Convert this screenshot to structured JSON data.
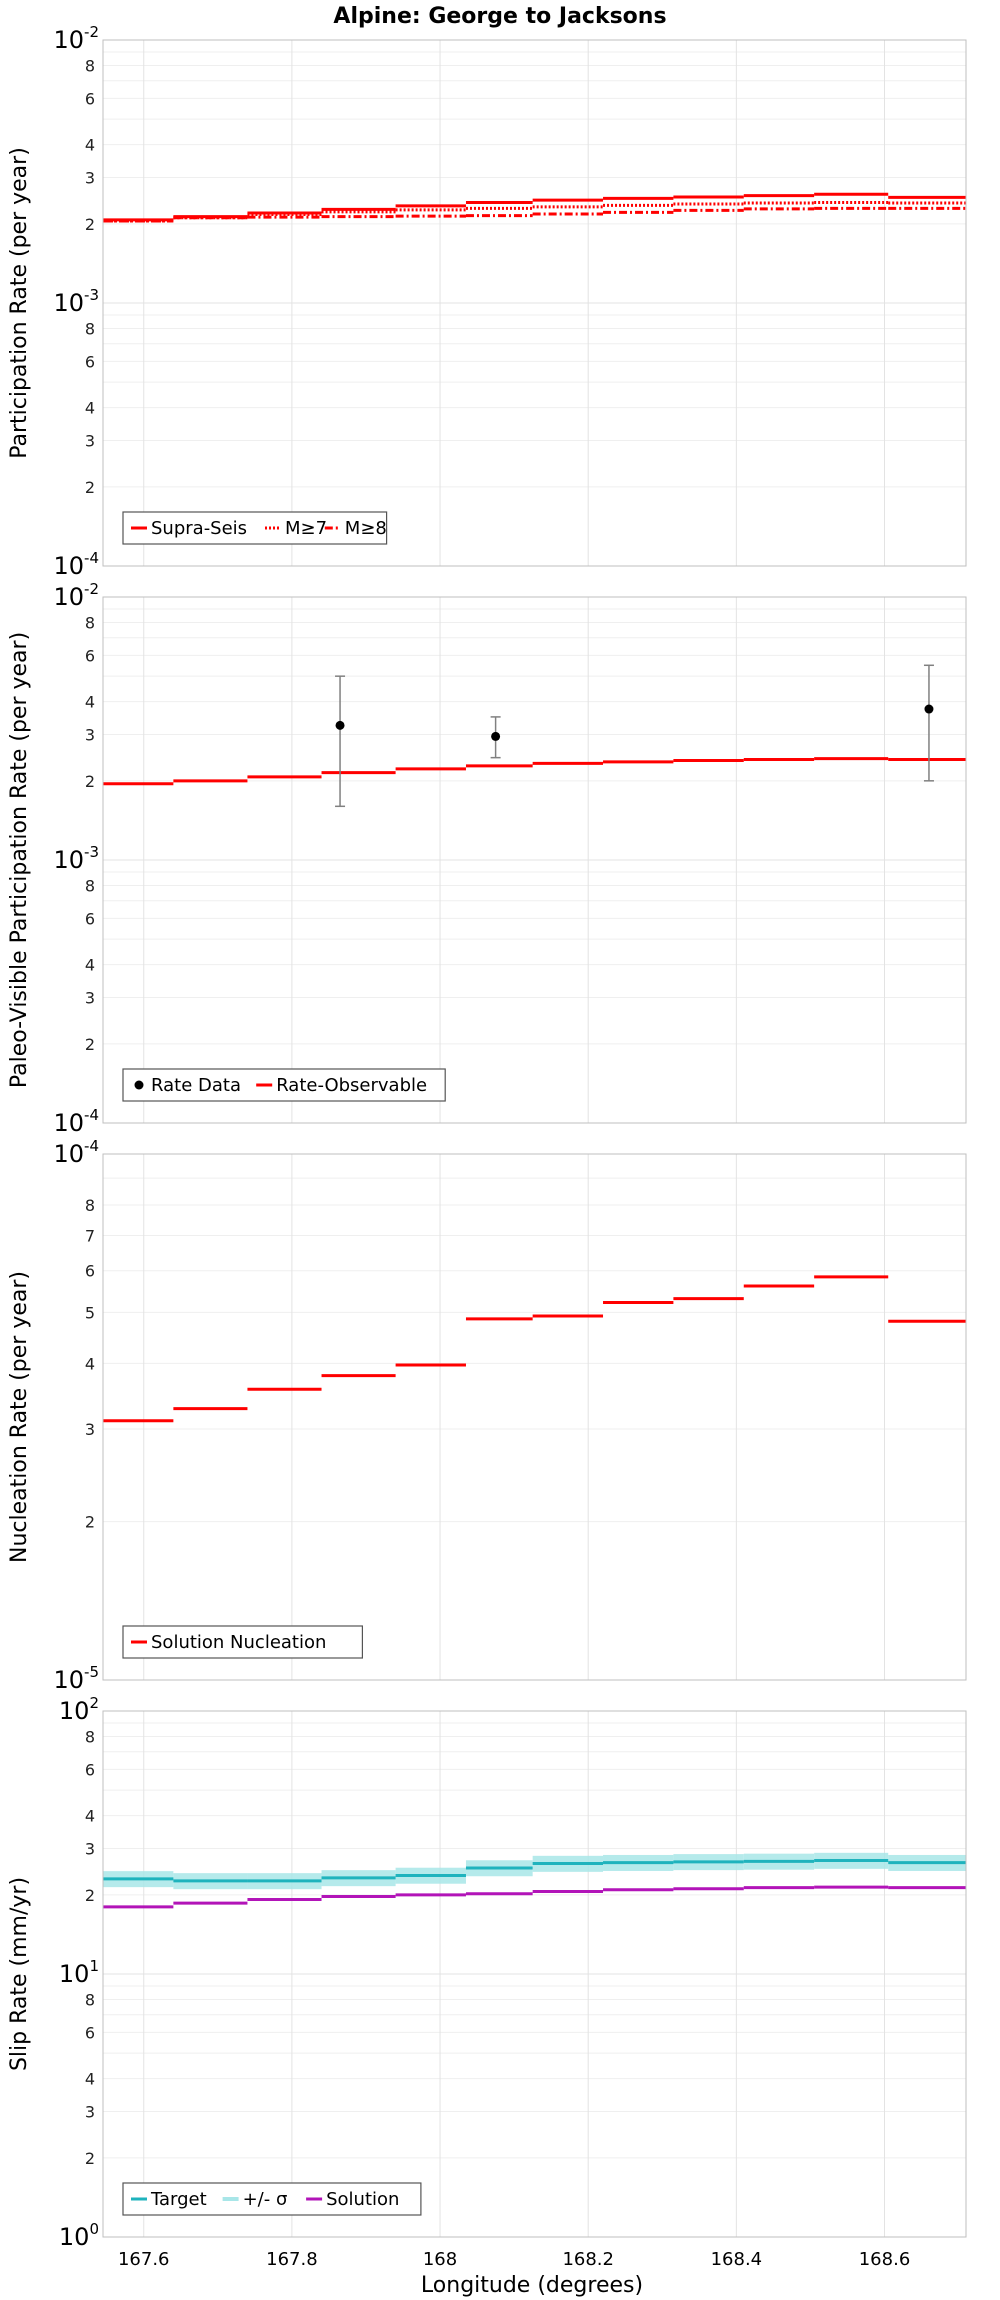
{
  "chart_data": {
    "type": "line",
    "title": "Alpine: George to Jacksons",
    "xlabel": "Longitude (degrees)",
    "xlim": [
      167.545,
      168.71
    ],
    "xticks": [
      "167.6",
      "167.8",
      "168",
      "168.2",
      "168.4",
      "168.6"
    ],
    "xtick_values": [
      167.6,
      167.8,
      168.0,
      168.2,
      168.4,
      168.6
    ],
    "sections": [
      {
        "start": 167.545,
        "end": 167.64
      },
      {
        "start": 167.64,
        "end": 167.74
      },
      {
        "start": 167.74,
        "end": 167.84
      },
      {
        "start": 167.84,
        "end": 167.94
      },
      {
        "start": 167.94,
        "end": 168.035
      },
      {
        "start": 168.035,
        "end": 168.125
      },
      {
        "start": 168.125,
        "end": 168.22
      },
      {
        "start": 168.22,
        "end": 168.315
      },
      {
        "start": 168.315,
        "end": 168.41
      },
      {
        "start": 168.41,
        "end": 168.505
      },
      {
        "start": 168.505,
        "end": 168.605
      },
      {
        "start": 168.605,
        "end": 168.71
      }
    ],
    "panels": [
      {
        "id": "participation",
        "ylabel": "Participation Rate (per year)",
        "ylim": [
          0.0001,
          0.01
        ],
        "y_major": [
          {
            "base": "10",
            "exp": "-4"
          },
          {
            "base": "10",
            "exp": "-3"
          },
          {
            "base": "10",
            "exp": "-2"
          }
        ],
        "minor_labels": [
          "2",
          "3",
          "4",
          "6",
          "8"
        ],
        "series": [
          {
            "name": "Supra-Seis",
            "style": "solid",
            "color": "#ff0000",
            "values": [
              0.00207,
              0.00213,
              0.0022,
              0.00227,
              0.00234,
              0.00241,
              0.00246,
              0.0025,
              0.00253,
              0.00256,
              0.00259,
              0.00252
            ]
          },
          {
            "name": "M≥7",
            "style": "dotted",
            "color": "#ff0000",
            "values": [
              0.00205,
              0.00211,
              0.00217,
              0.00222,
              0.00226,
              0.00229,
              0.00232,
              0.00235,
              0.00238,
              0.0024,
              0.00241,
              0.0024
            ]
          },
          {
            "name": "M≥8",
            "style": "dashdot",
            "color": "#ff0000",
            "values": [
              0.00205,
              0.00211,
              0.00212,
              0.00213,
              0.00214,
              0.00215,
              0.00218,
              0.00221,
              0.00225,
              0.00228,
              0.00229,
              0.00229
            ]
          }
        ],
        "legend": [
          "Supra-Seis",
          "M≥7",
          "M≥8"
        ]
      },
      {
        "id": "paleo",
        "ylabel": "Paleo-Visible Participation Rate (per year)",
        "ylim": [
          0.0001,
          0.01
        ],
        "y_major": [
          {
            "base": "10",
            "exp": "-4"
          },
          {
            "base": "10",
            "exp": "-3"
          },
          {
            "base": "10",
            "exp": "-2"
          }
        ],
        "minor_labels": [
          "2",
          "3",
          "4",
          "6",
          "8"
        ],
        "series": [
          {
            "name": "Rate-Observable",
            "style": "solid",
            "color": "#ff0000",
            "values": [
              0.00195,
              0.002,
              0.00207,
              0.00215,
              0.00222,
              0.00228,
              0.00233,
              0.00236,
              0.00239,
              0.00241,
              0.00243,
              0.00241
            ]
          }
        ],
        "points": {
          "name": "Rate Data",
          "x": [
            167.865,
            168.075,
            168.66
          ],
          "y": [
            0.00325,
            0.00295,
            0.00375
          ],
          "lower": [
            0.0016,
            0.00245,
            0.002
          ],
          "upper": [
            0.005,
            0.0035,
            0.0055
          ]
        },
        "legend": [
          "Rate Data",
          "Rate-Observable"
        ]
      },
      {
        "id": "nucleation",
        "ylabel": "Nucleation Rate (per year)",
        "ylim": [
          1e-05,
          0.0001
        ],
        "y_major": [
          {
            "base": "10",
            "exp": "-5"
          },
          {
            "base": "10",
            "exp": "-4"
          }
        ],
        "minor_labels": [
          "2",
          "3",
          "4",
          "5",
          "6",
          "7",
          "8"
        ],
        "series": [
          {
            "name": "Solution Nucleation",
            "style": "solid",
            "color": "#ff0000",
            "values": [
              3.11e-05,
              3.28e-05,
              3.57e-05,
              3.79e-05,
              3.97e-05,
              4.86e-05,
              4.92e-05,
              5.22e-05,
              5.31e-05,
              5.61e-05,
              5.84e-05,
              4.81e-05
            ]
          }
        ],
        "legend": [
          "Solution Nucleation"
        ]
      },
      {
        "id": "slip",
        "ylabel": "Slip Rate (mm/yr)",
        "ylim": [
          1,
          100
        ],
        "y_major": [
          {
            "base": "10",
            "exp": "0"
          },
          {
            "base": "10",
            "exp": "1"
          },
          {
            "base": "10",
            "exp": "2"
          }
        ],
        "minor_labels": [
          "2",
          "3",
          "4",
          "6",
          "8"
        ],
        "series": [
          {
            "name": "Target",
            "style": "solid",
            "color": "#1fb3bd",
            "values": [
              23.0,
              22.6,
              22.6,
              23.2,
              23.7,
              25.3,
              26.3,
              26.5,
              26.7,
              26.8,
              27.0,
              26.5
            ]
          },
          {
            "name": "Solution",
            "style": "solid",
            "color": "#b214b8",
            "values": [
              18.0,
              18.6,
              19.2,
              19.7,
              20.0,
              20.2,
              20.6,
              20.9,
              21.1,
              21.3,
              21.4,
              21.3
            ]
          }
        ],
        "band": {
          "name": "+/- σ",
          "color": "#a8e6e8",
          "lower_factor": 0.93,
          "upper_factor": 1.07
        },
        "legend": [
          "Target",
          "+/- σ",
          "Solution"
        ]
      }
    ]
  }
}
